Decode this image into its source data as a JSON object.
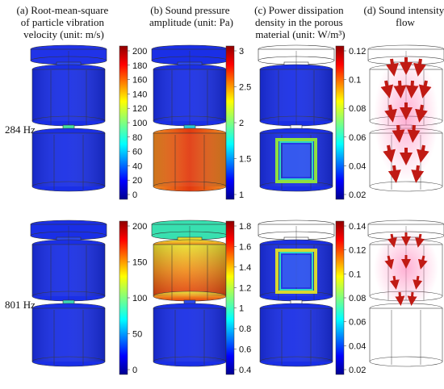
{
  "headers": [
    {
      "lines": [
        "(a) Root-mean-square",
        "of particle vibration",
        "velocity (unit: m/s)"
      ]
    },
    {
      "lines": [
        "(b) Sound pressure",
        "amplitude (unit: Pa)"
      ]
    },
    {
      "lines": [
        "(c) Power dissipation",
        "density in the porous",
        "material (unit: W/m³)"
      ]
    },
    {
      "lines": [
        "(d) Sound intensity",
        "flow"
      ]
    }
  ],
  "rows": [
    {
      "label": "284 Hz"
    },
    {
      "label": "801 Hz"
    }
  ],
  "colorbars": [
    {
      "id": "a1",
      "ticks": [
        "200",
        "180",
        "160",
        "140",
        "120",
        "100",
        "80",
        "60",
        "40",
        "20",
        "0"
      ]
    },
    {
      "id": "b1",
      "ticks": [
        "3",
        "2.5",
        "2",
        "1.5",
        "1"
      ]
    },
    {
      "id": "c1",
      "ticks": [
        "0.12",
        "0.1",
        "0.08",
        "0.06",
        "0.04",
        "0.02"
      ]
    },
    {
      "id": "a2",
      "ticks": [
        "200",
        "150",
        "100",
        "50",
        "0"
      ]
    },
    {
      "id": "b2",
      "ticks": [
        "1.8",
        "1.6",
        "1.4",
        "1.2",
        "1",
        "0.8",
        "0.6",
        "0.4"
      ]
    },
    {
      "id": "c2",
      "ticks": [
        "0.14",
        "0.12",
        "0.1",
        "0.08",
        "0.06",
        "0.04",
        "0.02"
      ]
    }
  ],
  "colors": {
    "blue": "#1a2fe6",
    "deep_blue": "#1020c8",
    "cyan": "#22d8d8",
    "green": "#6be34a",
    "yellow": "#e8e030",
    "orange": "#f08a20",
    "red": "#d81e10",
    "arrow": "#e0201a"
  }
}
